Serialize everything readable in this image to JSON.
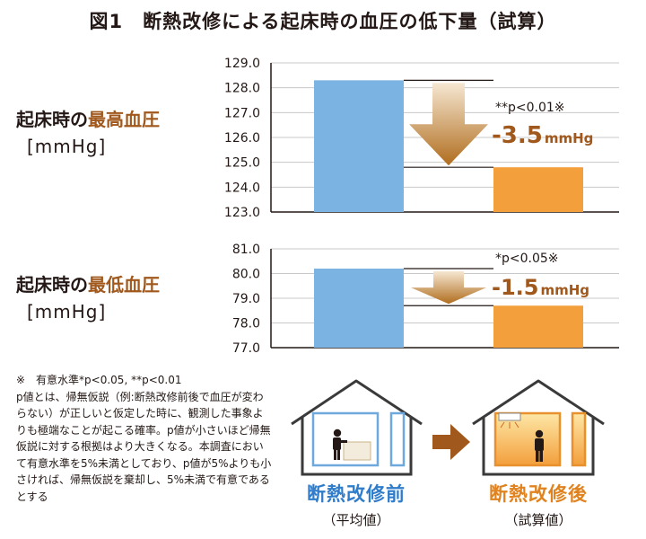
{
  "title": "図1　断熱改修による起床時の血圧の低下量（試算）",
  "colors": {
    "before": "#7bb3e3",
    "after": "#f39f3c",
    "arrow": "#b06d1e",
    "highlight": "#a0581c"
  },
  "chart_data": [
    {
      "type": "bar",
      "name_prefix": "起床時の",
      "name_highlight": "最高血圧",
      "unit": "[mmHg]",
      "ylim": [
        123.0,
        129.0
      ],
      "yticks": [
        "129.0",
        "128.0",
        "127.0",
        "126.0",
        "125.0",
        "124.0",
        "123.0"
      ],
      "categories": [
        "断熱改修前",
        "断熱改修後"
      ],
      "values": [
        128.3,
        124.8
      ],
      "significance": "**p<0.01※",
      "difference": "-3.5",
      "difference_unit": "mmHg"
    },
    {
      "type": "bar",
      "name_prefix": "起床時の",
      "name_highlight": "最低血圧",
      "unit": "[mmHg]",
      "ylim": [
        77.0,
        81.0
      ],
      "yticks": [
        "81.0",
        "80.0",
        "79.0",
        "78.0",
        "77.0"
      ],
      "categories": [
        "断熱改修前",
        "断熱改修後"
      ],
      "values": [
        80.2,
        78.7
      ],
      "significance": "*p<0.05※",
      "difference": "-1.5",
      "difference_unit": "mmHg"
    }
  ],
  "note": {
    "significance_line": "※　有意水準*p<0.05, **p<0.01",
    "body": "p値とは、帰無仮説（例:断熱改修前後で血圧が変わらない）が正しいと仮定した時に、観測した事象よりも極端なことが起こる確率。p値が小さいほど帰無仮説に対する根拠はより大きくなる。本調査において有意水準を5%未満としており、p値が5%よりも小さければ、帰無仮説を棄却し、5%未満で有意であるとする"
  },
  "houses": {
    "before": {
      "label": "断熱改修前",
      "sub": "（平均値）"
    },
    "after": {
      "label": "断熱改修後",
      "sub": "（試算値）"
    }
  },
  "icons": [
    "house-before-icon",
    "house-after-icon",
    "transition-arrow-icon",
    "person-icon",
    "air-conditioner-icon"
  ]
}
